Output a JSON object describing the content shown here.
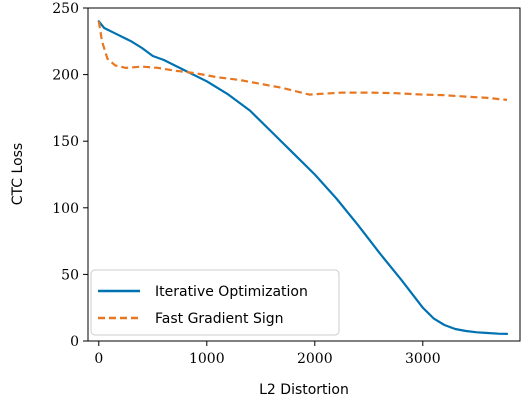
{
  "chart_data": {
    "type": "line",
    "xlabel": "L2 Distortion",
    "ylabel": "CTC Loss",
    "xlim": [
      -100,
      3900
    ],
    "ylim": [
      0,
      250
    ],
    "xticks": [
      0,
      1000,
      2000,
      3000
    ],
    "yticks": [
      0,
      50,
      100,
      150,
      200,
      250
    ],
    "grid": false,
    "legend_position": "lower-left",
    "series": [
      {
        "name": "Iterative Optimization",
        "color": "#0072B2",
        "style": "solid",
        "x": [
          0,
          50,
          150,
          300,
          400,
          450,
          500,
          600,
          800,
          1000,
          1200,
          1400,
          1600,
          1800,
          2000,
          2200,
          2400,
          2600,
          2800,
          3000,
          3100,
          3200,
          3300,
          3400,
          3500,
          3600,
          3700,
          3780
        ],
        "y": [
          240,
          235,
          231,
          225,
          220,
          217,
          214,
          211,
          203,
          195,
          185,
          173,
          157,
          141,
          125,
          107,
          87,
          66,
          46,
          25,
          17,
          12,
          9,
          7.5,
          6.5,
          6,
          5.5,
          5.3
        ]
      },
      {
        "name": "Fast Gradient Sign",
        "color": "#E87722",
        "style": "dashed",
        "x": [
          0,
          30,
          80,
          150,
          250,
          400,
          550,
          700,
          900,
          1100,
          1300,
          1500,
          1700,
          1850,
          1950,
          2050,
          2250,
          2500,
          2750,
          3000,
          3200,
          3400,
          3600,
          3780
        ],
        "y": [
          240,
          225,
          212,
          207,
          205,
          206,
          205,
          203,
          201,
          198,
          196,
          193,
          190,
          187,
          185,
          185.5,
          186.5,
          186.5,
          186,
          185,
          184.5,
          183.5,
          182.5,
          181
        ]
      }
    ]
  }
}
